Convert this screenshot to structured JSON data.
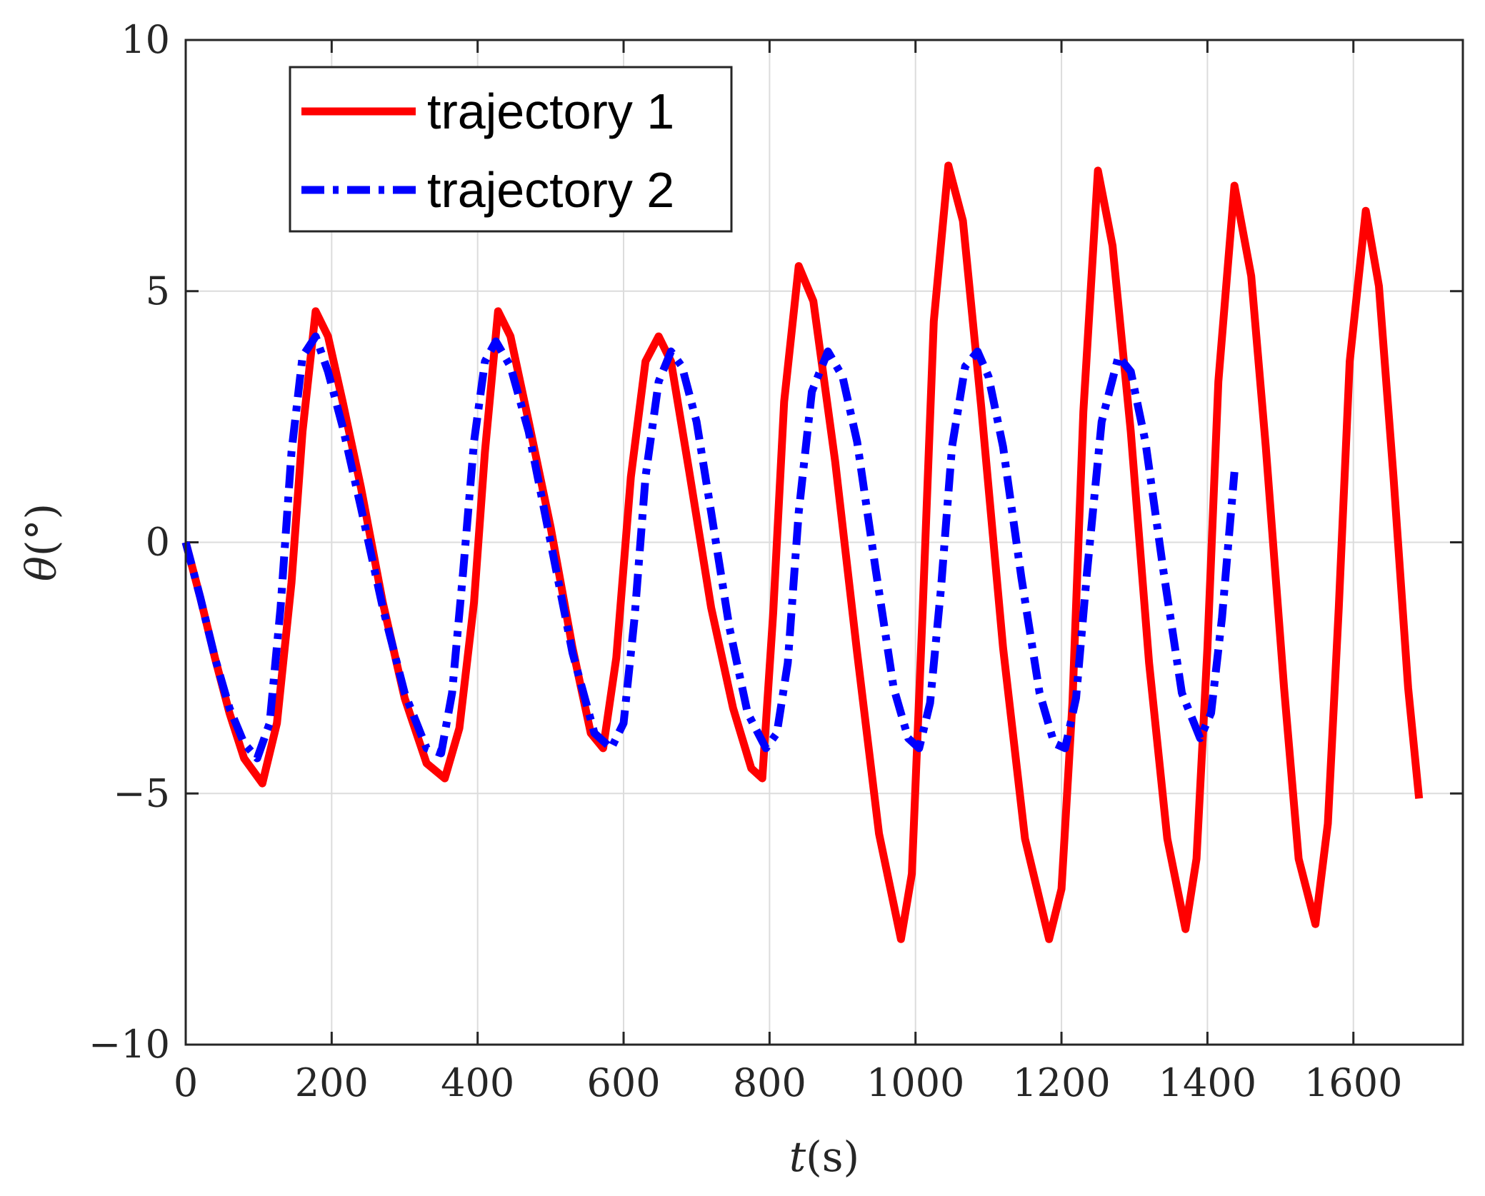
{
  "chart_data": {
    "type": "line",
    "title": "",
    "xlabel_var": "t",
    "xlabel_unit": "(s)",
    "ylabel_var": "θ",
    "ylabel_unit": "(°)",
    "xlim": [
      0,
      1750
    ],
    "ylim": [
      -10,
      10
    ],
    "xticks": [
      0,
      200,
      400,
      600,
      800,
      1000,
      1200,
      1400,
      1600
    ],
    "yticks": [
      -10,
      -5,
      0,
      5,
      10
    ],
    "ytick_labels": [
      "−10",
      "−5",
      "0",
      "5",
      "10"
    ],
    "grid": true,
    "legend_position": "top-left",
    "series": [
      {
        "name": "trajectory 1",
        "color": "#ff0000",
        "style": "solid",
        "x": [
          0,
          20,
          40,
          60,
          80,
          105,
          125,
          145,
          160,
          178,
          195,
          215,
          240,
          270,
          300,
          330,
          355,
          375,
          395,
          410,
          428,
          445,
          470,
          500,
          530,
          555,
          572,
          590,
          610,
          630,
          648,
          665,
          690,
          720,
          750,
          775,
          790,
          805,
          820,
          840,
          860,
          890,
          920,
          950,
          980,
          995,
          1010,
          1025,
          1045,
          1065,
          1090,
          1120,
          1150,
          1183,
          1200,
          1215,
          1230,
          1250,
          1270,
          1295,
          1320,
          1345,
          1370,
          1385,
          1400,
          1415,
          1437,
          1460,
          1480,
          1505,
          1525,
          1548,
          1565,
          1580,
          1595,
          1617,
          1635,
          1655,
          1675,
          1690
        ],
        "y": [
          0,
          -1.1,
          -2.3,
          -3.4,
          -4.3,
          -4.8,
          -3.6,
          -0.8,
          2.2,
          4.6,
          4.1,
          2.8,
          1.1,
          -1.2,
          -3.1,
          -4.4,
          -4.7,
          -3.7,
          -1.2,
          1.8,
          4.6,
          4.1,
          2.4,
          0.3,
          -2.1,
          -3.8,
          -4.1,
          -2.3,
          1.3,
          3.6,
          4.1,
          3.6,
          1.4,
          -1.3,
          -3.3,
          -4.5,
          -4.7,
          -1.4,
          2.8,
          5.5,
          4.8,
          1.6,
          -2.2,
          -5.8,
          -7.9,
          -6.6,
          -1.3,
          4.4,
          7.5,
          6.4,
          2.7,
          -2.1,
          -5.9,
          -7.9,
          -6.9,
          -3.2,
          2.6,
          7.4,
          5.9,
          2.2,
          -2.4,
          -5.9,
          -7.7,
          -6.3,
          -2.1,
          3.2,
          7.1,
          5.3,
          1.9,
          -2.9,
          -6.3,
          -7.6,
          -5.6,
          -1.3,
          3.6,
          6.6,
          5.1,
          1.3,
          -2.9,
          -5.1
        ]
      },
      {
        "name": "trajectory 2",
        "color": "#0000ff",
        "style": "dashdot",
        "x": [
          0,
          20,
          40,
          60,
          80,
          98,
          115,
          130,
          145,
          160,
          178,
          195,
          215,
          240,
          270,
          300,
          330,
          350,
          365,
          380,
          395,
          410,
          425,
          445,
          470,
          500,
          530,
          560,
          583,
          600,
          615,
          630,
          648,
          665,
          680,
          700,
          720,
          745,
          770,
          795,
          810,
          825,
          840,
          858,
          880,
          900,
          920,
          945,
          970,
          990,
          1005,
          1020,
          1035,
          1050,
          1068,
          1085,
          1100,
          1120,
          1145,
          1170,
          1190,
          1205,
          1220,
          1235,
          1255,
          1278,
          1295,
          1315,
          1340,
          1365,
          1390,
          1405,
          1420,
          1437
        ],
        "y": [
          0,
          -1.1,
          -2.3,
          -3.3,
          -4.0,
          -4.3,
          -3.6,
          -1.3,
          1.8,
          3.7,
          4.1,
          3.4,
          2.3,
          0.7,
          -1.3,
          -3.0,
          -4.1,
          -4.2,
          -3.0,
          -0.6,
          2.0,
          3.6,
          4.0,
          3.5,
          2.2,
          0.0,
          -2.2,
          -3.8,
          -4.1,
          -3.6,
          -1.5,
          1.3,
          3.2,
          3.8,
          3.5,
          2.4,
          0.6,
          -1.7,
          -3.4,
          -4.1,
          -3.8,
          -2.4,
          0.6,
          3.0,
          3.8,
          3.3,
          2.0,
          -0.5,
          -2.9,
          -3.9,
          -4.1,
          -3.2,
          -0.9,
          1.9,
          3.5,
          3.8,
          3.3,
          1.9,
          -0.7,
          -3.0,
          -4.0,
          -4.1,
          -3.1,
          -0.6,
          2.4,
          3.7,
          3.4,
          2.0,
          -0.6,
          -3.0,
          -3.9,
          -3.4,
          -1.5,
          1.4
        ]
      }
    ]
  }
}
